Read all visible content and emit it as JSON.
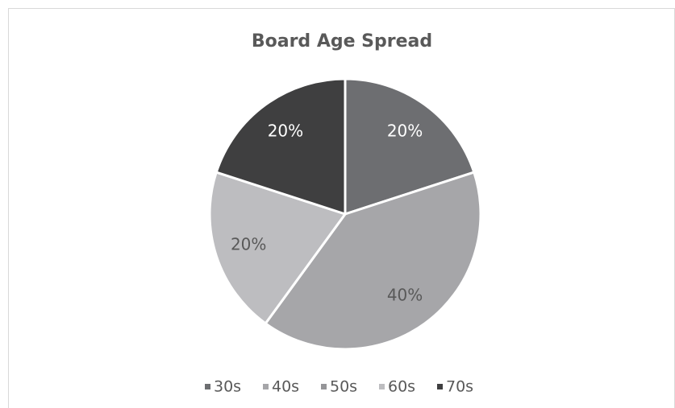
{
  "chart_data": {
    "type": "pie",
    "title": "Board Age Spread",
    "categories": [
      "30s",
      "40s",
      "50s",
      "60s",
      "70s"
    ],
    "values": [
      20,
      40,
      0,
      20,
      20
    ],
    "value_labels": [
      "20%",
      "40%",
      null,
      "20%",
      "20%"
    ],
    "colors": [
      "#6d6e71",
      "#a6a6a9",
      "#959598",
      "#bdbdc0",
      "#3f3f40"
    ],
    "legend": "bottom"
  }
}
